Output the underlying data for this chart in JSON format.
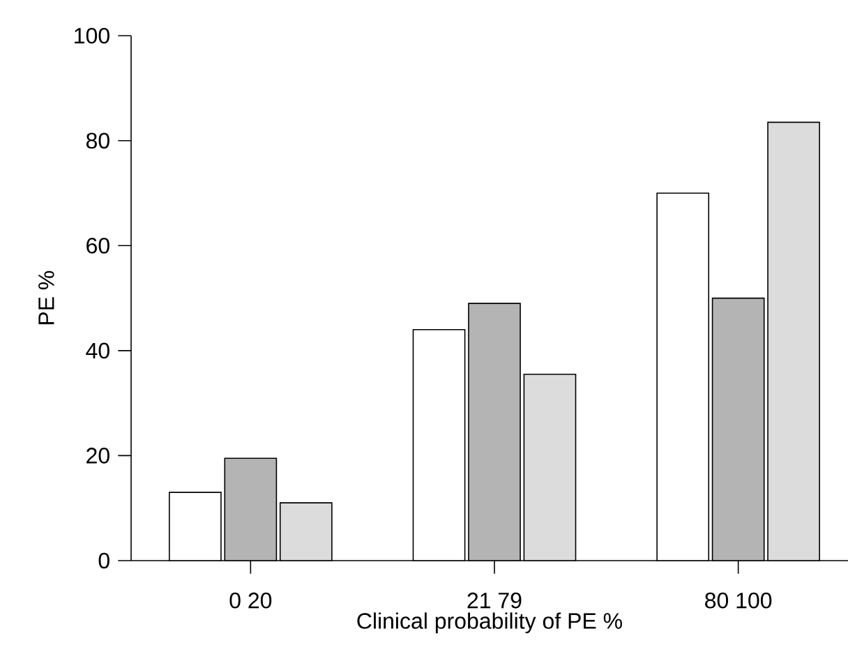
{
  "chart_data": {
    "type": "bar",
    "xlabel": "Clinical probability of PE %",
    "ylabel": "PE %",
    "categories": [
      "0 20",
      "21 79",
      "80 100"
    ],
    "series": [
      {
        "color": "#ffffff",
        "values": [
          13,
          44,
          70
        ]
      },
      {
        "color": "#b4b4b4",
        "values": [
          19.5,
          49,
          50
        ]
      },
      {
        "color": "#dcdcdc",
        "values": [
          11,
          35.5,
          83.5
        ]
      }
    ],
    "ylim": [
      0,
      100
    ],
    "yticks": [
      0,
      20,
      40,
      60,
      80,
      100
    ]
  }
}
